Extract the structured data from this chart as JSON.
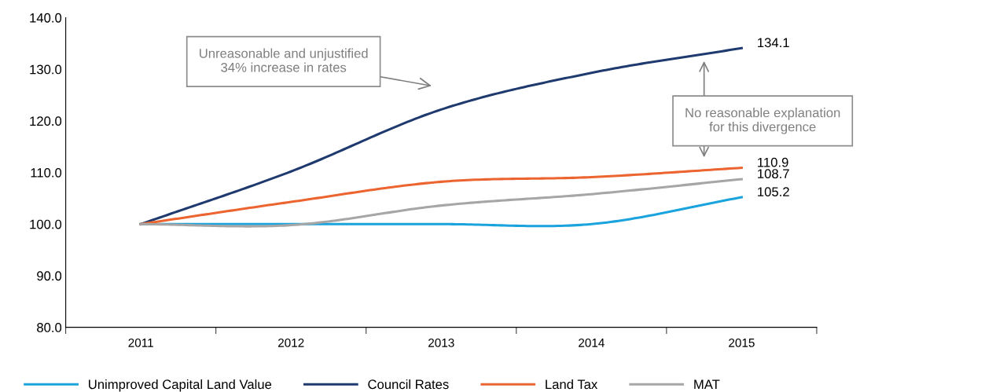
{
  "chart_data": {
    "type": "line",
    "categories": [
      "2011",
      "2012",
      "2013",
      "2014",
      "2015"
    ],
    "series": [
      {
        "name": "Unimproved Capital Land Value",
        "color": "#1aa3dc",
        "values": [
          100.0,
          100.0,
          100.0,
          100.0,
          105.2
        ],
        "value_labels": [
          null,
          null,
          null,
          null,
          "105.2"
        ]
      },
      {
        "name": "Council Rates",
        "color": "#1f3a6e",
        "values": [
          100.0,
          110.2,
          122.2,
          129.3,
          134.1
        ],
        "value_labels": [
          null,
          null,
          null,
          null,
          "134.1"
        ]
      },
      {
        "name": "Land Tax",
        "color": "#ec6530",
        "values": [
          100.0,
          104.3,
          108.2,
          109.1,
          110.9
        ],
        "value_labels": [
          null,
          null,
          null,
          null,
          "110.9"
        ]
      },
      {
        "name": "MAT",
        "color": "#a6a6a6",
        "values": [
          100.0,
          99.8,
          103.6,
          105.8,
          108.7
        ],
        "value_labels": [
          null,
          null,
          null,
          null,
          "108.7"
        ]
      }
    ],
    "ylim": [
      80,
      140
    ],
    "yticks": [
      {
        "value": 80,
        "label": "80.0"
      },
      {
        "value": 90,
        "label": "90.0"
      },
      {
        "value": 100,
        "label": "100.0"
      },
      {
        "value": 110,
        "label": "110.0"
      },
      {
        "value": 120,
        "label": "120.0"
      },
      {
        "value": 130,
        "label": "130.0"
      },
      {
        "value": 140,
        "label": "140.0"
      }
    ],
    "annotations": [
      "Unreasonable and unjustified\n34% increase in rates",
      "No reasonable explanation\nfor this divergence"
    ],
    "legend": "bottom",
    "grid": false,
    "marker": "none",
    "line_style": "solid"
  }
}
